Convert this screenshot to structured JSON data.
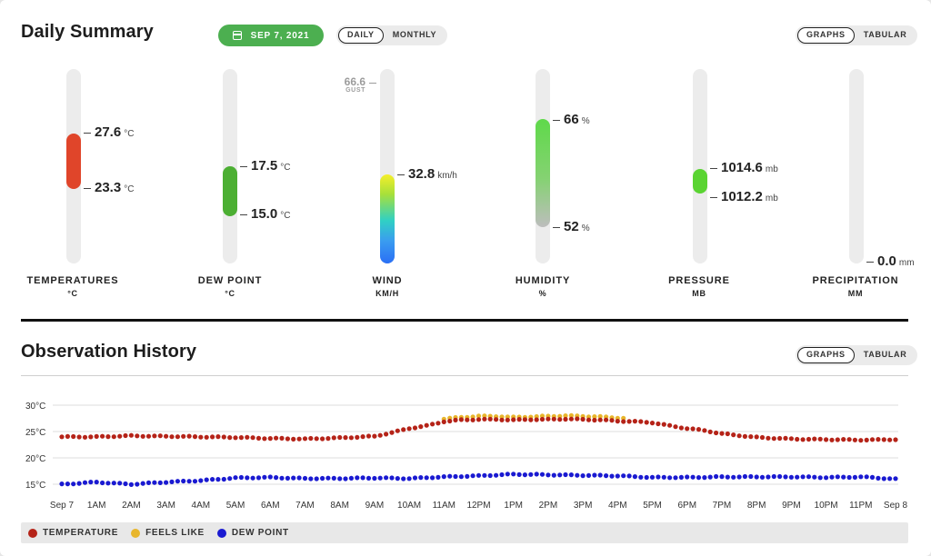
{
  "daily_summary": {
    "title": "Daily Summary",
    "date": "SEP 7, 2021",
    "period_options": [
      "DAILY",
      "MONTHLY"
    ],
    "active_period": "DAILY",
    "view_options": [
      "GRAPHS",
      "TABULAR"
    ],
    "active_view": "GRAPHS"
  },
  "gauges": {
    "temperature": {
      "label": "TEMPERATURES",
      "unit_label": "°C",
      "high": "27.6",
      "low": "23.3",
      "unit": "°C",
      "color": "#e0452a"
    },
    "dew_point": {
      "label": "DEW POINT",
      "unit_label": "°C",
      "high": "17.5",
      "low": "15.0",
      "unit": "°C",
      "color": "#4caf33"
    },
    "wind": {
      "label": "WIND",
      "unit_label": "KM/H",
      "value": "32.8",
      "unit": "km/h",
      "gust": "66.6",
      "gust_label": "GUST"
    },
    "humidity": {
      "label": "HUMIDITY",
      "unit_label": "%",
      "high": "66",
      "low": "52",
      "unit": "%"
    },
    "pressure": {
      "label": "PRESSURE",
      "unit_label": "MB",
      "high": "1014.6",
      "low": "1012.2",
      "unit": "mb",
      "color": "#5ad432"
    },
    "precipitation": {
      "label": "PRECIPITATION",
      "unit_label": "MM",
      "value": "0.0",
      "unit": "mm"
    }
  },
  "observation_history": {
    "title": "Observation History",
    "view_options": [
      "GRAPHS",
      "TABULAR"
    ],
    "active_view": "GRAPHS",
    "legend": [
      {
        "label": "TEMPERATURE",
        "color": "#b52318"
      },
      {
        "label": "FEELS LIKE",
        "color": "#e8b62c"
      },
      {
        "label": "DEW POINT",
        "color": "#1a1ad1"
      }
    ]
  },
  "chart_data": {
    "type": "scatter",
    "yticks": [
      "30°C",
      "25°C",
      "20°C",
      "15°C"
    ],
    "ylim": [
      15,
      30
    ],
    "xticks": [
      "Sep 7",
      "1AM",
      "2AM",
      "3AM",
      "4AM",
      "5AM",
      "6AM",
      "7AM",
      "8AM",
      "9AM",
      "10AM",
      "11AM",
      "12PM",
      "1PM",
      "2PM",
      "3PM",
      "4PM",
      "5PM",
      "6PM",
      "7PM",
      "8PM",
      "9PM",
      "10PM",
      "11PM",
      "Sep 8"
    ],
    "xlim": [
      0,
      24
    ],
    "grid": true,
    "legend_position": "bottom",
    "series": [
      {
        "name": "TEMPERATURE",
        "color": "#b52318",
        "x": [
          0,
          1,
          2,
          3,
          4,
          5,
          6,
          7,
          8,
          9,
          9.5,
          10,
          10.5,
          11,
          11.5,
          12,
          12.5,
          13,
          13.5,
          14,
          14.5,
          15,
          15.5,
          16,
          16.5,
          17,
          17.5,
          18,
          18.5,
          19,
          20,
          21,
          22,
          23,
          24
        ],
        "y": [
          24.0,
          24.0,
          24.2,
          24.1,
          24.0,
          23.9,
          23.7,
          23.6,
          23.8,
          24.1,
          24.8,
          25.6,
          26.1,
          26.9,
          27.2,
          27.3,
          27.3,
          27.2,
          27.3,
          27.3,
          27.4,
          27.3,
          27.2,
          27.0,
          26.9,
          26.7,
          26.1,
          25.6,
          25.2,
          24.6,
          23.9,
          23.6,
          23.5,
          23.4,
          23.5
        ]
      },
      {
        "name": "FEELS LIKE",
        "color": "#e8b62c",
        "x": [
          11,
          11.5,
          12,
          12.5,
          13,
          13.5,
          14,
          14.5,
          15,
          15.5,
          16,
          16.3
        ],
        "y": [
          27.4,
          27.7,
          27.9,
          27.9,
          27.7,
          27.8,
          27.9,
          28.0,
          27.9,
          27.8,
          27.6,
          27.5
        ]
      },
      {
        "name": "DEW POINT",
        "color": "#1a1ad1",
        "x": [
          0,
          1,
          2,
          3,
          4,
          5,
          6,
          7,
          8,
          9,
          10,
          11,
          12,
          13,
          14,
          15,
          16,
          17,
          18,
          19,
          20,
          21,
          22,
          23,
          24
        ],
        "y": [
          15.0,
          15.4,
          15.0,
          15.4,
          15.7,
          16.2,
          16.3,
          16.1,
          16.1,
          16.2,
          16.1,
          16.4,
          16.6,
          16.9,
          16.8,
          16.7,
          16.6,
          16.3,
          16.3,
          16.4,
          16.4,
          16.4,
          16.3,
          16.4,
          16.0
        ]
      }
    ]
  }
}
